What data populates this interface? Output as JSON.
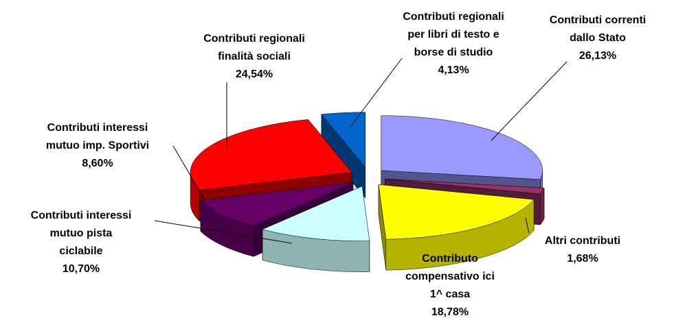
{
  "chart_data": {
    "type": "pie3d",
    "categories": [
      [
        "Contributi correnti",
        "dallo Stato"
      ],
      [
        "Altri contributi"
      ],
      [
        "Contributo",
        "compensativo ici",
        "1^ casa"
      ],
      [
        "Contributi interessi",
        "mutuo pista",
        "ciclabile"
      ],
      [
        "Contributi interessi",
        "mutuo imp. Sportivi"
      ],
      [
        "Contributi regionali",
        "finalità sociali"
      ],
      [
        "Contributi regionali",
        "per libri di testo e",
        "borse di studio"
      ]
    ],
    "values": [
      26.13,
      1.68,
      18.78,
      10.7,
      8.6,
      24.54,
      4.13
    ],
    "value_labels": [
      "26,13%",
      "1,68%",
      "18,78%",
      "10,70%",
      "8,60%",
      "24,54%",
      "4,13%"
    ],
    "colors": [
      "#9999ff",
      "#993366",
      "#ffff00",
      "#ccffff",
      "#660066",
      "#ff0000",
      "#0066cc"
    ]
  }
}
